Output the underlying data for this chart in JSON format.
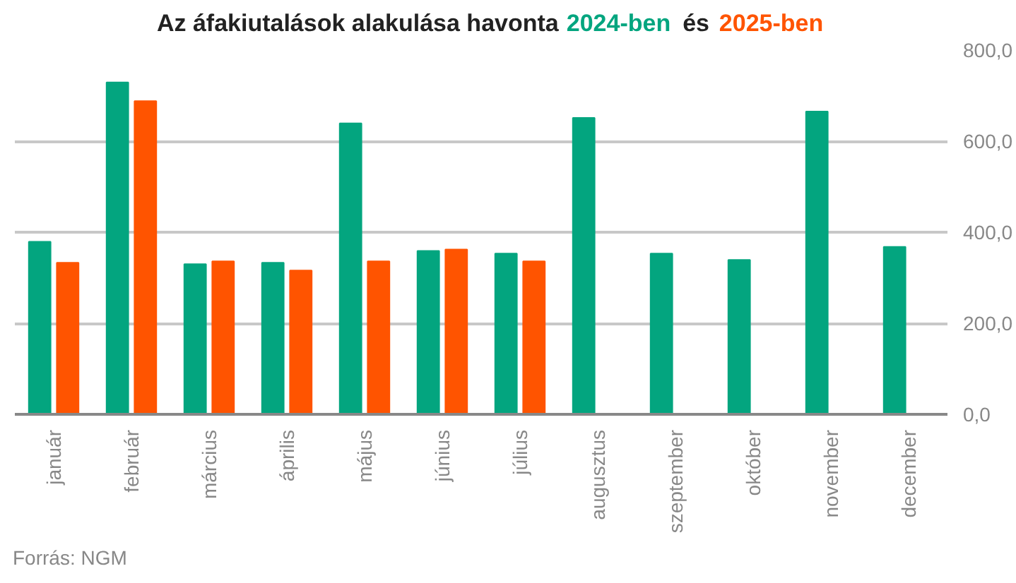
{
  "chart_data": {
    "type": "bar",
    "title": "Az áfakiutalások alakulása havonta",
    "categories": [
      "január",
      "február",
      "március",
      "április",
      "május",
      "június",
      "július",
      "augusztus",
      "szeptember",
      "október",
      "november",
      "december"
    ],
    "series": [
      {
        "name": "2024-ben",
        "color": "#03a57f",
        "values": [
          379,
          729,
          330,
          333,
          639,
          359,
          353,
          651,
          353,
          339,
          665,
          368
        ]
      },
      {
        "name": "2025-ben",
        "color": "#ff5400",
        "values": [
          333,
          688,
          336,
          316,
          336,
          362,
          336,
          null,
          null,
          null,
          null,
          null
        ]
      }
    ],
    "ylim": [
      0,
      800
    ],
    "yticks": [
      {
        "value": 0,
        "label": "0,0"
      },
      {
        "value": 200,
        "label": "200,0"
      },
      {
        "value": 400,
        "label": "400,0"
      },
      {
        "value": 600,
        "label": "600,0"
      },
      {
        "value": 800,
        "label": "800,0"
      }
    ],
    "grid": "y",
    "annotations": [
      "és",
      "Forrás: NGM"
    ]
  }
}
